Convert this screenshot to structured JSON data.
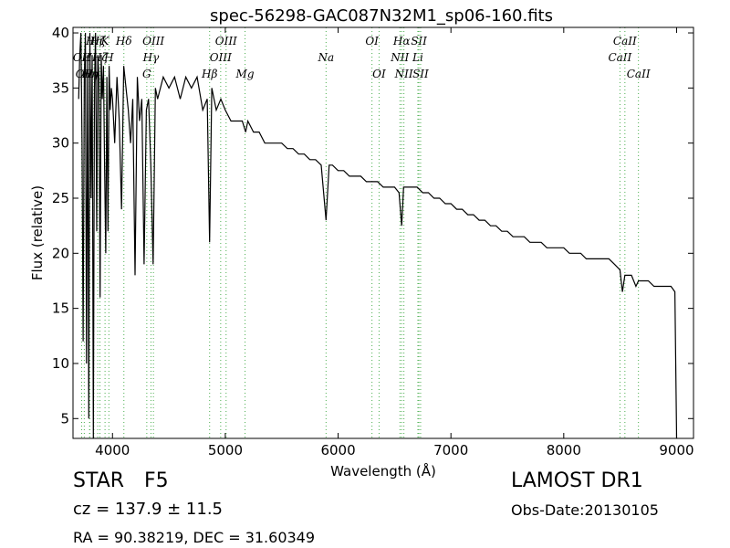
{
  "chart_data": {
    "type": "line",
    "title": "spec-56298-GAC087N32M1_sp06-160.fits",
    "xlabel": "Wavelength (Å)",
    "ylabel": "Flux (relative)",
    "xlim": [
      3650,
      9150
    ],
    "ylim": [
      3.2,
      40.5
    ],
    "x_ticks": [
      4000,
      5000,
      6000,
      7000,
      8000,
      9000
    ],
    "y_ticks": [
      5,
      10,
      15,
      20,
      25,
      30,
      35,
      40
    ],
    "grid": false,
    "series_color": "#000000",
    "line_marker_color": "#4caf50",
    "series": [
      {
        "x": [
          3700,
          3710,
          3720,
          3730,
          3740,
          3750,
          3760,
          3770,
          3780,
          3790,
          3800,
          3810,
          3820,
          3830,
          3840,
          3850,
          3860,
          3870,
          3880,
          3890,
          3900,
          3910,
          3920,
          3930,
          3940,
          3950,
          3960,
          3970,
          3980,
          3990,
          4000,
          4020,
          4040,
          4060,
          4080,
          4100,
          4120,
          4140,
          4160,
          4180,
          4200,
          4220,
          4240,
          4260,
          4280,
          4300,
          4320,
          4340,
          4360,
          4380,
          4400,
          4450,
          4500,
          4550,
          4600,
          4650,
          4700,
          4750,
          4800,
          4840,
          4861,
          4880,
          4920,
          4960,
          5000,
          5050,
          5100,
          5150,
          5180,
          5200,
          5250,
          5300,
          5350,
          5400,
          5450,
          5500,
          5550,
          5600,
          5650,
          5700,
          5750,
          5800,
          5850,
          5893,
          5920,
          5950,
          6000,
          6050,
          6100,
          6150,
          6200,
          6250,
          6300,
          6350,
          6400,
          6450,
          6500,
          6540,
          6563,
          6580,
          6600,
          6650,
          6700,
          6750,
          6800,
          6850,
          6900,
          6950,
          7000,
          7050,
          7100,
          7150,
          7200,
          7250,
          7300,
          7350,
          7400,
          7450,
          7500,
          7550,
          7600,
          7650,
          7700,
          7750,
          7800,
          7850,
          7900,
          7950,
          8000,
          8050,
          8100,
          8150,
          8200,
          8250,
          8300,
          8350,
          8400,
          8450,
          8498,
          8520,
          8542,
          8560,
          8600,
          8640,
          8662,
          8700,
          8750,
          8800,
          8850,
          8900,
          8950,
          8985,
          9000
        ],
        "y": [
          34,
          38,
          40,
          30,
          12,
          36,
          40,
          10,
          38,
          5,
          40,
          25,
          38,
          3,
          35,
          40,
          22,
          38,
          36,
          16,
          38,
          34,
          37,
          28,
          20,
          36,
          22,
          37,
          33,
          35,
          34,
          30,
          36,
          32,
          24,
          37,
          35,
          33,
          30,
          34,
          18,
          36,
          32,
          34,
          19,
          33,
          34,
          28,
          19,
          35,
          34,
          36,
          35,
          36,
          34,
          36,
          35,
          36,
          33,
          34,
          21,
          35,
          33,
          34,
          33,
          32,
          32,
          32,
          31,
          32,
          31,
          31,
          30,
          30,
          30,
          30,
          29.5,
          29.5,
          29,
          29,
          28.5,
          28.5,
          28,
          23,
          28,
          28,
          27.5,
          27.5,
          27,
          27,
          27,
          26.5,
          26.5,
          26.5,
          26,
          26,
          26,
          25.5,
          22.5,
          26,
          26,
          26,
          26,
          25.5,
          25.5,
          25,
          25,
          24.5,
          24.5,
          24,
          24,
          23.5,
          23.5,
          23,
          23,
          22.5,
          22.5,
          22,
          22,
          21.5,
          21.5,
          21.5,
          21,
          21,
          21,
          20.5,
          20.5,
          20.5,
          20.5,
          20,
          20,
          20,
          19.5,
          19.5,
          19.5,
          19.5,
          19.5,
          19,
          18.5,
          16.5,
          18,
          18,
          18,
          17,
          17.5,
          17.5,
          17.5,
          17,
          17,
          17,
          17,
          16.5,
          3.2
        ]
      }
    ],
    "lines": [
      {
        "x": 3727,
        "label": "OII",
        "row": 1
      },
      {
        "x": 3750,
        "label": "OII",
        "row": 2
      },
      {
        "x": 3797,
        "label": "HI",
        "row": 1
      },
      {
        "x": 3800,
        "label": "Hη",
        "row": 2
      },
      {
        "x": 3835,
        "label": "Hη",
        "row": 0
      },
      {
        "x": 3869,
        "label": "Hζ",
        "row": 0
      },
      {
        "x": 3889,
        "label": "Hζ",
        "row": 1
      },
      {
        "x": 3934,
        "label": "K",
        "row": 0
      },
      {
        "x": 3968,
        "label": "H",
        "row": 1
      },
      {
        "x": 4101,
        "label": "Hδ",
        "row": 0
      },
      {
        "x": 4304,
        "label": "G",
        "row": 2
      },
      {
        "x": 4341,
        "label": "Hγ",
        "row": 1
      },
      {
        "x": 4363,
        "label": "OIII",
        "row": 0
      },
      {
        "x": 4861,
        "label": "Hβ",
        "row": 2
      },
      {
        "x": 4959,
        "label": "OIII",
        "row": 1
      },
      {
        "x": 5007,
        "label": "OIII",
        "row": 0
      },
      {
        "x": 5175,
        "label": "Mg",
        "row": 2
      },
      {
        "x": 5893,
        "label": "Na",
        "row": 1
      },
      {
        "x": 6300,
        "label": "OI",
        "row": 0
      },
      {
        "x": 6363,
        "label": "OI",
        "row": 2
      },
      {
        "x": 6548,
        "label": "NII",
        "row": 1
      },
      {
        "x": 6563,
        "label": "Hα",
        "row": 0
      },
      {
        "x": 6583,
        "label": "NII",
        "row": 2
      },
      {
        "x": 6707,
        "label": "Li",
        "row": 1
      },
      {
        "x": 6716,
        "label": "SII",
        "row": 0
      },
      {
        "x": 6731,
        "label": "SII",
        "row": 2
      },
      {
        "x": 8498,
        "label": "CaII",
        "row": 1
      },
      {
        "x": 8542,
        "label": "CaII",
        "row": 0
      },
      {
        "x": 8662,
        "label": "CaII",
        "row": 2
      }
    ]
  },
  "info": {
    "object_class": "STAR",
    "subclass": "F5",
    "survey": "LAMOST DR1",
    "cz": "cz = 137.9 ± 11.5",
    "obs_date": "Obs-Date:20130105",
    "coords": "RA = 90.38219, DEC = 31.60349"
  }
}
